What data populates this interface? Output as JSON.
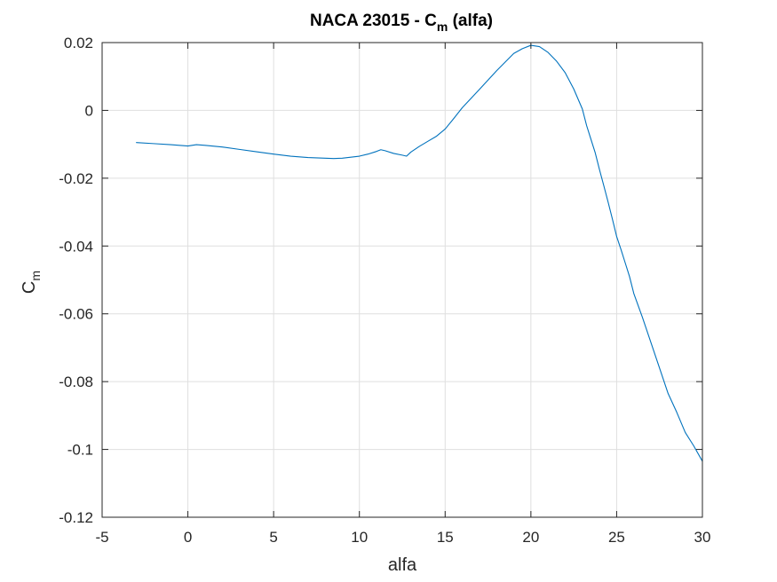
{
  "chart_data": {
    "type": "line",
    "title": {
      "prefix": "NACA 23015 - C",
      "subscript": "m",
      "suffix": " (alfa)"
    },
    "xlabel": "alfa",
    "ylabel": {
      "main": "C",
      "subscript": "m"
    },
    "xlim": [
      -5,
      30
    ],
    "ylim": [
      -0.12,
      0.02
    ],
    "xticks": [
      -5,
      0,
      5,
      10,
      15,
      20,
      25,
      30
    ],
    "xtick_labels": [
      "-5",
      "0",
      "5",
      "10",
      "15",
      "20",
      "25",
      "30"
    ],
    "yticks": [
      0.02,
      0,
      -0.02,
      -0.04,
      -0.06,
      -0.08,
      -0.1,
      -0.12
    ],
    "ytick_labels": [
      "0.02",
      "0",
      "-0.02",
      "-0.04",
      "-0.06",
      "-0.08",
      "-0.1",
      "-0.12"
    ],
    "grid": true,
    "series": [
      {
        "color": "#0072BD",
        "x": [
          -3,
          -2,
          -1,
          0,
          0.5,
          1,
          2,
          3,
          4,
          5,
          6,
          7,
          8,
          8.5,
          9,
          10,
          10.5,
          11,
          11.25,
          11.5,
          12,
          12.5,
          12.75,
          13,
          13.5,
          14,
          14.5,
          15,
          15.5,
          16,
          17,
          18,
          19,
          19.5,
          20,
          20.5,
          21,
          21.5,
          22,
          22.5,
          23,
          23.25,
          23.5,
          23.75,
          24,
          24.25,
          24.5,
          24.75,
          25,
          25.25,
          25.5,
          25.75,
          26,
          26.5,
          27,
          27.5,
          28,
          28.5,
          29,
          29.5,
          30
        ],
        "y": [
          -0.0095,
          -0.0098,
          -0.0101,
          -0.0105,
          -0.0101,
          -0.0103,
          -0.0108,
          -0.0115,
          -0.0122,
          -0.0129,
          -0.0135,
          -0.0139,
          -0.0141,
          -0.0142,
          -0.0141,
          -0.0135,
          -0.0129,
          -0.0121,
          -0.0116,
          -0.0119,
          -0.0127,
          -0.0132,
          -0.0135,
          -0.0123,
          -0.0106,
          -0.0091,
          -0.0076,
          -0.0055,
          -0.0024,
          0.0008,
          0.0062,
          0.0117,
          0.0168,
          0.0182,
          0.0192,
          0.0188,
          0.0171,
          0.0145,
          0.0111,
          0.0063,
          0.0004,
          -0.0045,
          -0.0085,
          -0.0125,
          -0.0175,
          -0.0222,
          -0.027,
          -0.032,
          -0.0372,
          -0.041,
          -0.045,
          -0.049,
          -0.054,
          -0.061,
          -0.0685,
          -0.076,
          -0.0835,
          -0.089,
          -0.095,
          -0.099,
          -0.1035
        ]
      }
    ]
  }
}
